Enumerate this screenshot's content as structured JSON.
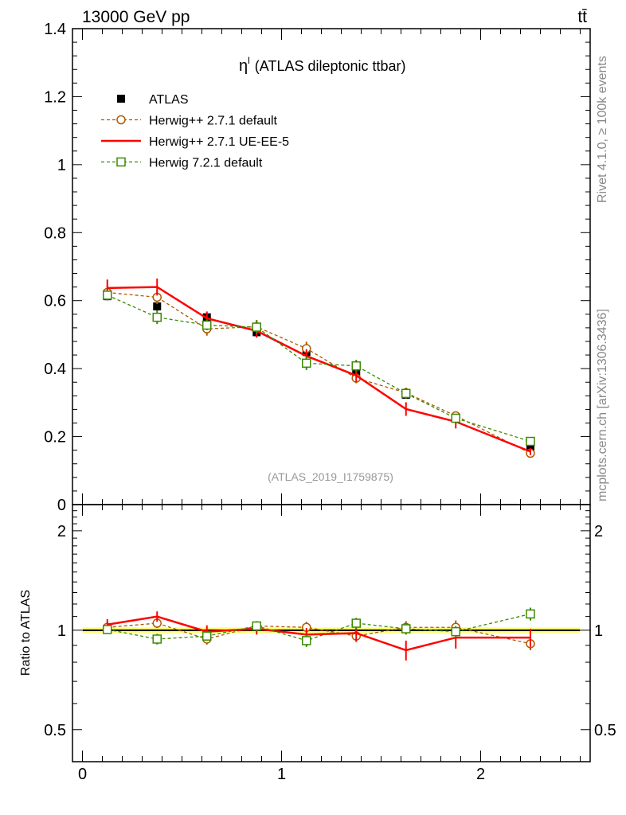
{
  "header": {
    "beam": "13000 GeV pp",
    "process": "tt̄"
  },
  "side_labels": {
    "rivet": "Rivet 4.1.0, ≥ 100k events",
    "source": "mcplots.cern.ch [arXiv:1306.3436]"
  },
  "chart_data": {
    "type": "line",
    "title_symbol": "η",
    "title_superscript": "l",
    "title_text": "(ATLAS dileptonic ttbar)",
    "analysis_id": "(ATLAS_2019_I1759875)",
    "x": [
      0.125,
      0.375,
      0.625,
      0.875,
      1.125,
      1.375,
      1.625,
      1.875,
      2.25
    ],
    "xlim": [
      -0.05,
      2.55
    ],
    "main": {
      "ylim": [
        0,
        1.4
      ],
      "yticks": [
        0,
        0.2,
        0.4,
        0.6,
        0.8,
        1,
        1.2,
        1.4
      ],
      "ytick_labels": [
        "0",
        "0.2",
        "0.4",
        "0.6",
        "0.8",
        "1",
        "1.2",
        "1.4"
      ]
    },
    "ratio": {
      "ylabel": "Ratio to ATLAS",
      "ylim": [
        0.4,
        2.4
      ],
      "yticks": [
        0.5,
        1,
        2
      ],
      "ytick_labels": [
        "0.5",
        "1",
        "2"
      ]
    },
    "xticks": [
      0,
      1,
      2
    ],
    "xtick_labels": [
      "0",
      "1",
      "2"
    ],
    "series": [
      {
        "name": "ATLAS",
        "color": "#000000",
        "style": "data",
        "values": [
          0.613,
          0.583,
          0.551,
          0.507,
          0.449,
          0.388,
          0.323,
          0.256,
          0.166
        ],
        "errors": [
          0.012,
          0.012,
          0.011,
          0.01,
          0.01,
          0.009,
          0.008,
          0.007,
          0.006
        ],
        "ratio": [
          1,
          1,
          1,
          1,
          1,
          1,
          1,
          1,
          1
        ]
      },
      {
        "name": "Herwig++ 2.7.1 default",
        "color": "#b05a00",
        "style": "dashed-circle",
        "values": [
          0.624,
          0.61,
          0.517,
          0.523,
          0.459,
          0.372,
          0.329,
          0.261,
          0.151
        ],
        "errors": [
          0.02,
          0.02,
          0.02,
          0.02,
          0.02,
          0.015,
          0.015,
          0.012,
          0.01
        ],
        "ratio": [
          1.02,
          1.05,
          0.94,
          1.03,
          1.02,
          0.96,
          1.02,
          1.02,
          0.91
        ],
        "ratio_errors": [
          0.03,
          0.035,
          0.035,
          0.035,
          0.04,
          0.04,
          0.045,
          0.05,
          0.04
        ]
      },
      {
        "name": "Herwig++ 2.7.1 UE-EE-5",
        "color": "#ff0000",
        "style": "solid",
        "values": [
          0.637,
          0.64,
          0.548,
          0.511,
          0.437,
          0.38,
          0.281,
          0.244,
          0.156
        ],
        "errors": [
          0.025,
          0.025,
          0.02,
          0.02,
          0.02,
          0.02,
          0.02,
          0.02,
          0.01
        ],
        "ratio": [
          1.04,
          1.1,
          0.99,
          1.01,
          0.97,
          0.98,
          0.87,
          0.95,
          0.95
        ],
        "ratio_errors": [
          0.04,
          0.04,
          0.045,
          0.04,
          0.045,
          0.05,
          0.06,
          0.07,
          0.06
        ]
      },
      {
        "name": "Herwig 7.2.1 default",
        "color": "#3a8a00",
        "style": "dashed-square",
        "values": [
          0.616,
          0.551,
          0.528,
          0.522,
          0.416,
          0.408,
          0.327,
          0.254,
          0.186
        ],
        "errors": [
          0.015,
          0.02,
          0.015,
          0.02,
          0.02,
          0.018,
          0.015,
          0.012,
          0.008
        ],
        "ratio": [
          1.005,
          0.94,
          0.96,
          1.03,
          0.93,
          1.05,
          1.01,
          0.99,
          1.12
        ],
        "ratio_errors": [
          0.03,
          0.035,
          0.03,
          0.035,
          0.04,
          0.04,
          0.04,
          0.04,
          0.05
        ]
      }
    ]
  }
}
